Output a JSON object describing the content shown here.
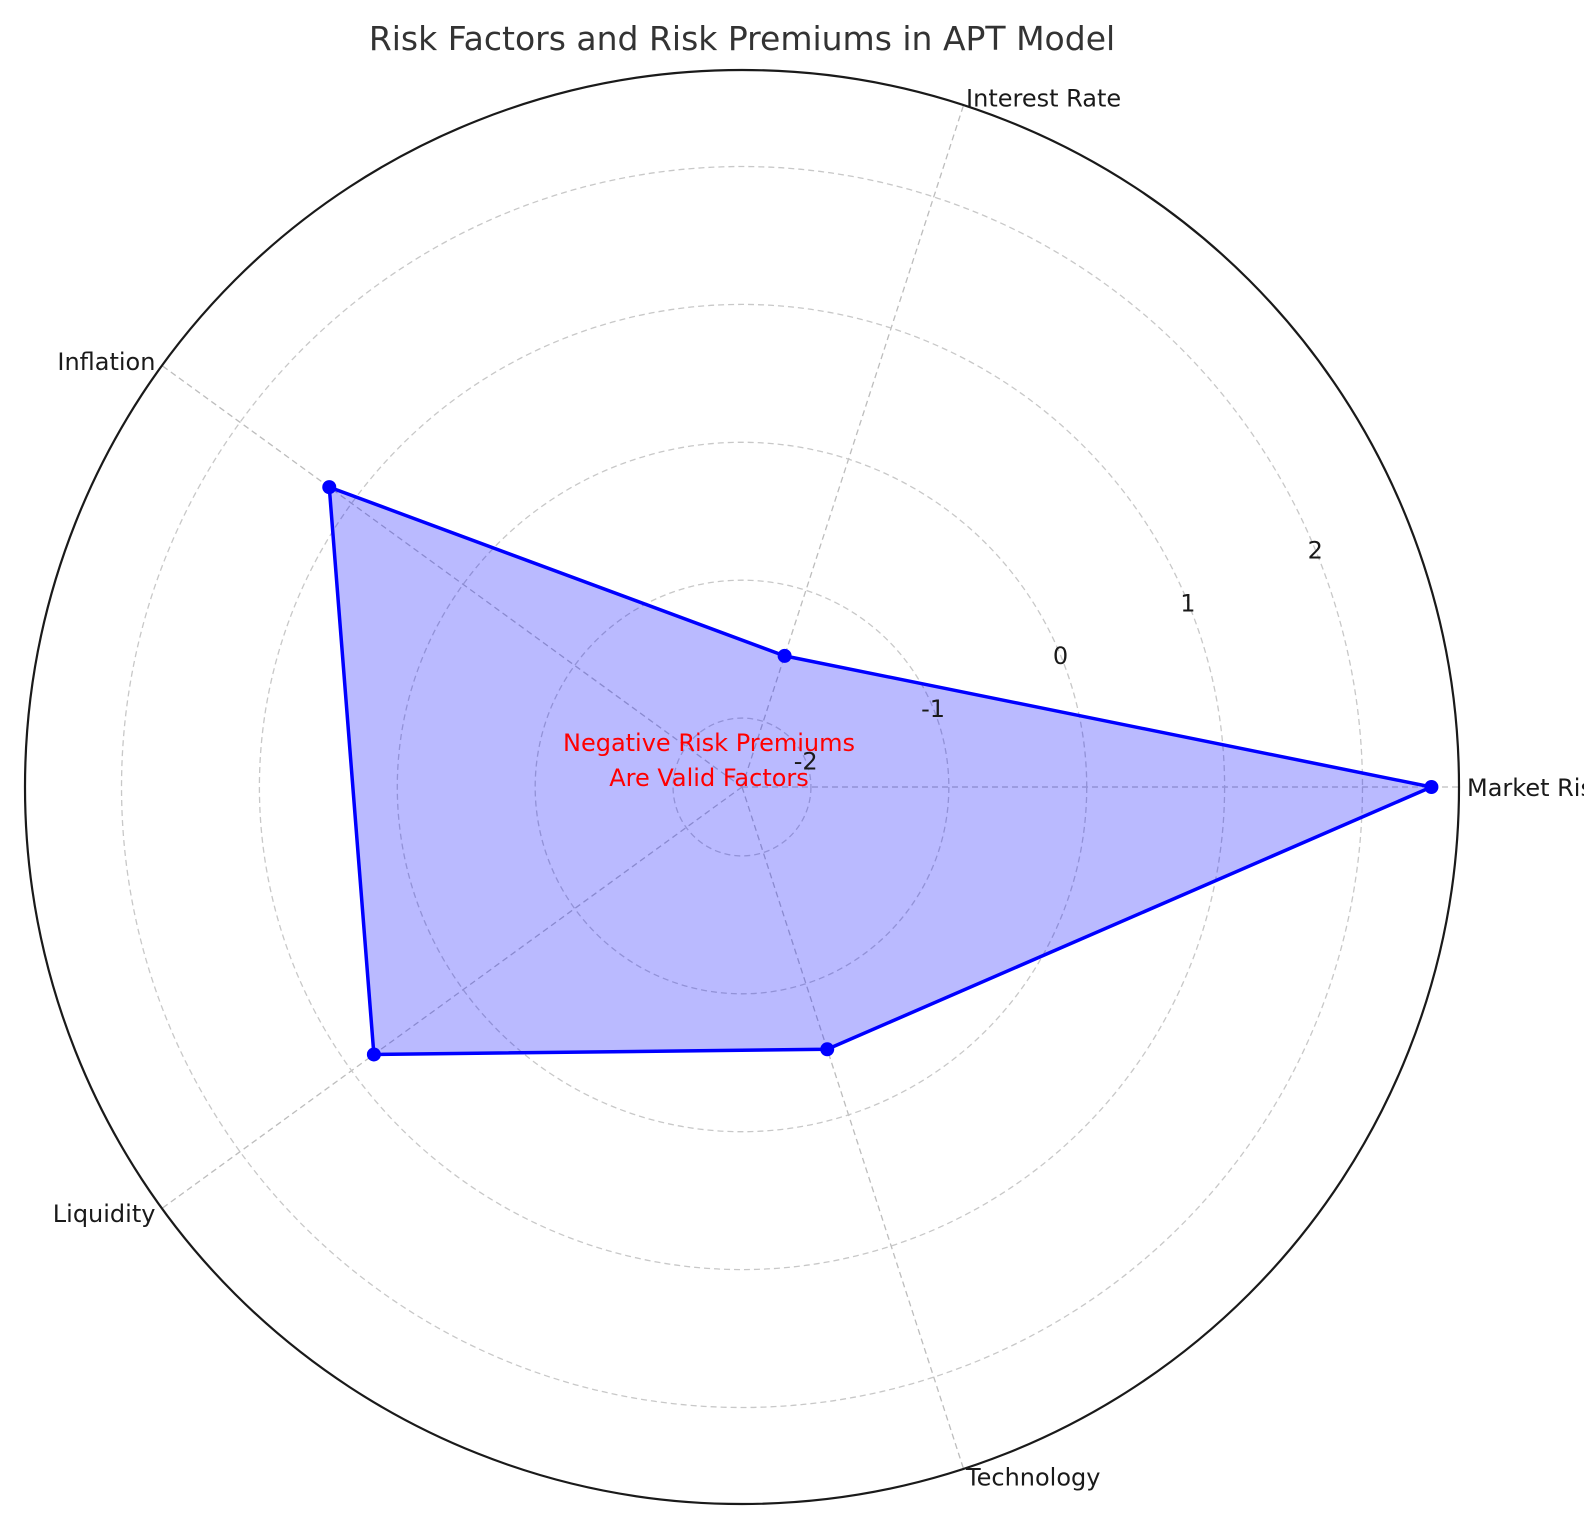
{
  "chart_data": {
    "type": "radar",
    "title": "Risk Factors and Risk Premiums in APT Model",
    "categories": [
      "Market Risk",
      "Interest Rate",
      "Inflation",
      "Liquidity",
      "Technology"
    ],
    "series": [
      {
        "values": [
          2.5,
          -1.5,
          1.2,
          0.8,
          -0.5
        ],
        "color": "#0000ff",
        "fill_color": "#0000ff",
        "fill_opacity": 0.27
      }
    ],
    "radial_ticks": [
      -2,
      -1,
      0,
      1,
      2
    ],
    "radial_tick_labels": [
      "-2",
      "-1",
      "0",
      "1",
      "2"
    ],
    "rlim": [
      -2.5,
      2.7
    ],
    "grid": true,
    "annotation": {
      "lines": [
        "Negative Risk Premiums",
        "Are Valid Factors"
      ],
      "color": "#ff0000"
    }
  }
}
